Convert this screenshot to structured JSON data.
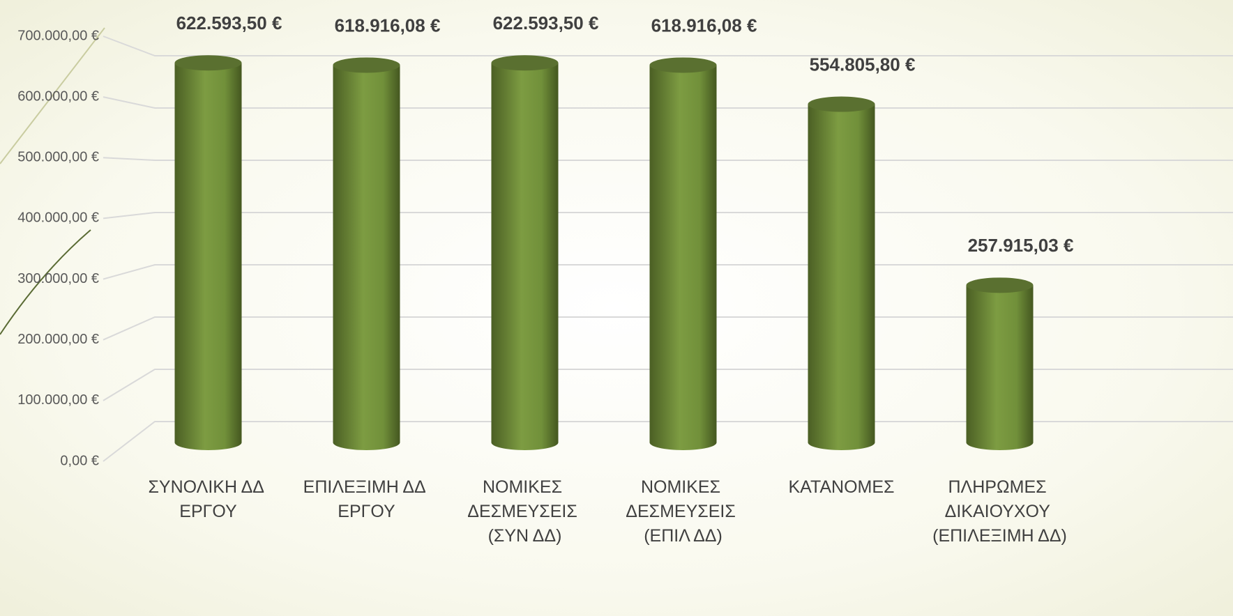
{
  "chart_data": {
    "type": "bar",
    "categories": [
      "ΣΥΝΟΛΙΚΗ ΔΔ ΕΡΓΟΥ",
      "ΕΠΙΛΕΞΙΜΗ ΔΔ ΕΡΓΟΥ",
      "ΝΟΜΙΚΕΣ ΔΕΣΜΕΥΣΕΙΣ (ΣΥΝ ΔΔ)",
      "ΝΟΜΙΚΕΣ ΔΕΣΜΕΥΣΕΙΣ (ΕΠΙΛ ΔΔ)",
      "ΚΑΤΑΝΟΜΕΣ",
      "ΠΛΗΡΩΜΕΣ ΔΙΚΑΙΟΥΧΟΥ (ΕΠΙΛΕΞΙΜΗ ΔΔ)"
    ],
    "values": [
      622593.5,
      618916.08,
      622593.5,
      618916.08,
      554805.8,
      257915.03
    ],
    "value_labels": [
      "622.593,50 €",
      "618.916,08 €",
      "622.593,50 €",
      "618.916,08 €",
      "554.805,80 €",
      "257.915,03 €"
    ],
    "color": "#76933c",
    "ylim": [
      0,
      700000
    ],
    "yticks": [
      {
        "value": 0,
        "label": "0,00 €"
      },
      {
        "value": 100000,
        "label": "100.000,00 €"
      },
      {
        "value": 200000,
        "label": "200.000,00 €"
      },
      {
        "value": 300000,
        "label": "300.000,00 €"
      },
      {
        "value": 400000,
        "label": "400.000,00 €"
      },
      {
        "value": 500000,
        "label": "500.000,00 €"
      },
      {
        "value": 600000,
        "label": "600.000,00 €"
      },
      {
        "value": 700000,
        "label": "700.000,00 €"
      }
    ],
    "grid": true
  }
}
